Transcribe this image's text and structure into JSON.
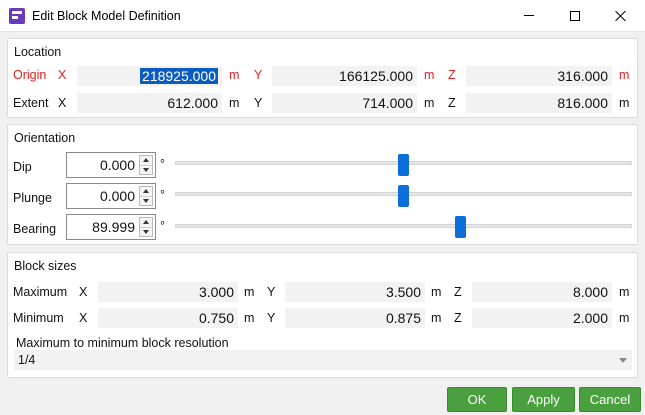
{
  "window": {
    "title": "Edit Block Model Definition",
    "app_icon": "app-logo-icon",
    "minimize_icon": "minimize-icon",
    "maximize_icon": "maximize-icon",
    "close_icon": "close-icon"
  },
  "location": {
    "title": "Location",
    "origin": {
      "label": "Origin",
      "x_axis": "X",
      "x": "218925.000",
      "x_unit": "m",
      "y_axis": "Y",
      "y": "166125.000",
      "y_unit": "m",
      "z_axis": "Z",
      "z": "316.000",
      "z_unit": "m",
      "color": "#e02020"
    },
    "extent": {
      "label": "Extent",
      "x_axis": "X",
      "x": "612.000",
      "x_unit": "m",
      "y_axis": "Y",
      "y": "714.000",
      "y_unit": "m",
      "z_axis": "Z",
      "z": "816.000",
      "z_unit": "m"
    }
  },
  "orientation": {
    "title": "Orientation",
    "dip": {
      "label": "Dip",
      "value": "0.000",
      "unit": "°",
      "slider_fraction": 0.5
    },
    "plunge": {
      "label": "Plunge",
      "value": "0.000",
      "unit": "°",
      "slider_fraction": 0.5
    },
    "bearing": {
      "label": "Bearing",
      "value": "89.999",
      "unit": "°",
      "slider_fraction": 0.625
    }
  },
  "block_sizes": {
    "title": "Block sizes",
    "maximum": {
      "label": "Maximum",
      "x_axis": "X",
      "x": "3.000",
      "x_unit": "m",
      "y_axis": "Y",
      "y": "3.500",
      "y_unit": "m",
      "z_axis": "Z",
      "z": "8.000",
      "z_unit": "m"
    },
    "minimum": {
      "label": "Minimum",
      "x_axis": "X",
      "x": "0.750",
      "x_unit": "m",
      "y_axis": "Y",
      "y": "0.875",
      "y_unit": "m",
      "z_axis": "Z",
      "z": "2.000",
      "z_unit": "m"
    },
    "resolution_label": "Maximum to minimum block resolution",
    "resolution_value": "1/4"
  },
  "buttons": {
    "ok": "OK",
    "apply": "Apply",
    "cancel": "Cancel",
    "color": "#4aa03f"
  }
}
